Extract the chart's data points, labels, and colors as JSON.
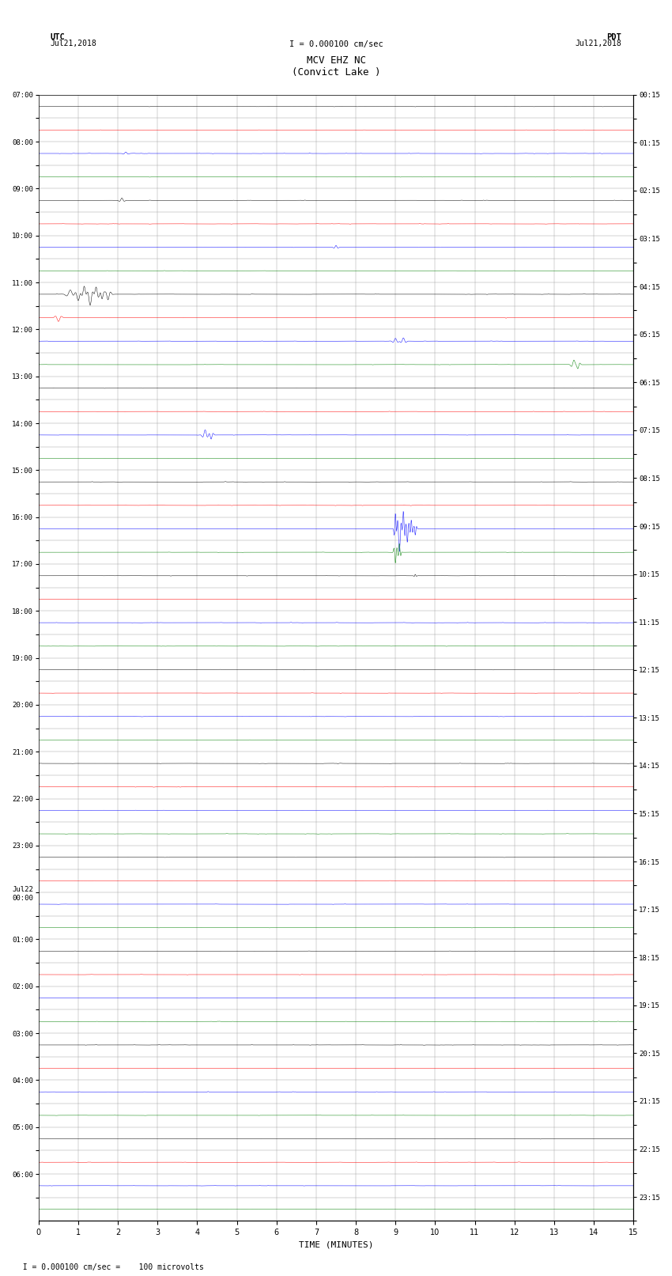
{
  "title_line1": "MCV EHZ NC",
  "title_line2": "(Convict Lake )",
  "scale_text": "I = 0.000100 cm/sec",
  "bottom_label": "TIME (MINUTES)",
  "footer_text": "  I = 0.000100 cm/sec =    100 microvolts",
  "xlabel_ticks": [
    0,
    1,
    2,
    3,
    4,
    5,
    6,
    7,
    8,
    9,
    10,
    11,
    12,
    13,
    14,
    15
  ],
  "n_rows": 48,
  "background_color": "#ffffff",
  "grid_color": "#999999",
  "row_colors": [
    "#000000",
    "#ff0000",
    "#0000ff",
    "#008000"
  ],
  "noise_amp": 0.012,
  "fig_width": 8.5,
  "fig_height": 16.13,
  "left_tick_labels": [
    "07:00",
    "",
    "08:00",
    "",
    "09:00",
    "",
    "10:00",
    "",
    "11:00",
    "",
    "12:00",
    "",
    "13:00",
    "",
    "14:00",
    "",
    "15:00",
    "",
    "16:00",
    "",
    "17:00",
    "",
    "18:00",
    "",
    "19:00",
    "",
    "20:00",
    "",
    "21:00",
    "",
    "22:00",
    "",
    "23:00",
    "",
    "Jul22\n00:00",
    "",
    "01:00",
    "",
    "02:00",
    "",
    "03:00",
    "",
    "04:00",
    "",
    "05:00",
    "",
    "06:00",
    ""
  ],
  "right_tick_labels": [
    "00:15",
    "",
    "01:15",
    "",
    "02:15",
    "",
    "03:15",
    "",
    "04:15",
    "",
    "05:15",
    "",
    "06:15",
    "",
    "07:15",
    "",
    "08:15",
    "",
    "09:15",
    "",
    "10:15",
    "",
    "11:15",
    "",
    "12:15",
    "",
    "13:15",
    "",
    "14:15",
    "",
    "15:15",
    "",
    "16:15",
    "",
    "17:15",
    "",
    "18:15",
    "",
    "19:15",
    "",
    "20:15",
    "",
    "21:15",
    "",
    "22:15",
    "",
    "23:15",
    ""
  ],
  "events": [
    {
      "row": 8,
      "minute": 0.8,
      "amp": 0.45,
      "color": "#ff0000",
      "dur": 0.15
    },
    {
      "row": 8,
      "minute": 1.0,
      "amp": -0.7,
      "color": "#ff0000",
      "dur": 0.12
    },
    {
      "row": 8,
      "minute": 1.15,
      "amp": 0.9,
      "color": "#ff0000",
      "dur": 0.1
    },
    {
      "row": 8,
      "minute": 1.3,
      "amp": -1.2,
      "color": "#ff0000",
      "dur": 0.12
    },
    {
      "row": 8,
      "minute": 1.45,
      "amp": 0.8,
      "color": "#ff0000",
      "dur": 0.1
    },
    {
      "row": 8,
      "minute": 1.6,
      "amp": -0.5,
      "color": "#ff0000",
      "dur": 0.08
    },
    {
      "row": 8,
      "minute": 1.75,
      "amp": -0.6,
      "color": "#ff0000",
      "dur": 0.1
    },
    {
      "row": 9,
      "minute": 0.5,
      "amp": -0.4,
      "color": "#ff0000",
      "dur": 0.12
    },
    {
      "row": 10,
      "minute": 9.0,
      "amp": 0.3,
      "color": "#ff0000",
      "dur": 0.1
    },
    {
      "row": 10,
      "minute": 9.2,
      "amp": 0.35,
      "color": "#ff0000",
      "dur": 0.1
    },
    {
      "row": 4,
      "minute": 2.1,
      "amp": 0.25,
      "color": "#008000",
      "dur": 0.1
    },
    {
      "row": 18,
      "minute": 9.0,
      "amp": 1.8,
      "color": "#0000ff",
      "dur": 0.05
    },
    {
      "row": 18,
      "minute": 9.1,
      "amp": -2.5,
      "color": "#0000ff",
      "dur": 0.08
    },
    {
      "row": 18,
      "minute": 9.2,
      "amp": 2.0,
      "color": "#0000ff",
      "dur": 0.06
    },
    {
      "row": 18,
      "minute": 9.3,
      "amp": -1.5,
      "color": "#0000ff",
      "dur": 0.06
    },
    {
      "row": 18,
      "minute": 9.4,
      "amp": 1.0,
      "color": "#0000ff",
      "dur": 0.05
    },
    {
      "row": 18,
      "minute": 9.5,
      "amp": -0.7,
      "color": "#0000ff",
      "dur": 0.05
    },
    {
      "row": 19,
      "minute": 9.0,
      "amp": -1.2,
      "color": "#0000ff",
      "dur": 0.06
    },
    {
      "row": 19,
      "minute": 9.1,
      "amp": 1.0,
      "color": "#0000ff",
      "dur": 0.05
    },
    {
      "row": 20,
      "minute": 9.5,
      "amp": 0.15,
      "color": "#008000",
      "dur": 0.05
    },
    {
      "row": 11,
      "minute": 13.5,
      "amp": 0.5,
      "color": "#008000",
      "dur": 0.1
    },
    {
      "row": 11,
      "minute": 13.6,
      "amp": -0.4,
      "color": "#008000",
      "dur": 0.08
    },
    {
      "row": 14,
      "minute": 4.2,
      "amp": 0.55,
      "color": "#008000",
      "dur": 0.1
    },
    {
      "row": 14,
      "minute": 4.35,
      "amp": -0.45,
      "color": "#008000",
      "dur": 0.08
    },
    {
      "row": 6,
      "minute": 7.5,
      "amp": 0.2,
      "color": "#000000",
      "dur": 0.08
    },
    {
      "row": 2,
      "minute": 2.2,
      "amp": 0.15,
      "color": "#008000",
      "dur": 0.1
    }
  ]
}
